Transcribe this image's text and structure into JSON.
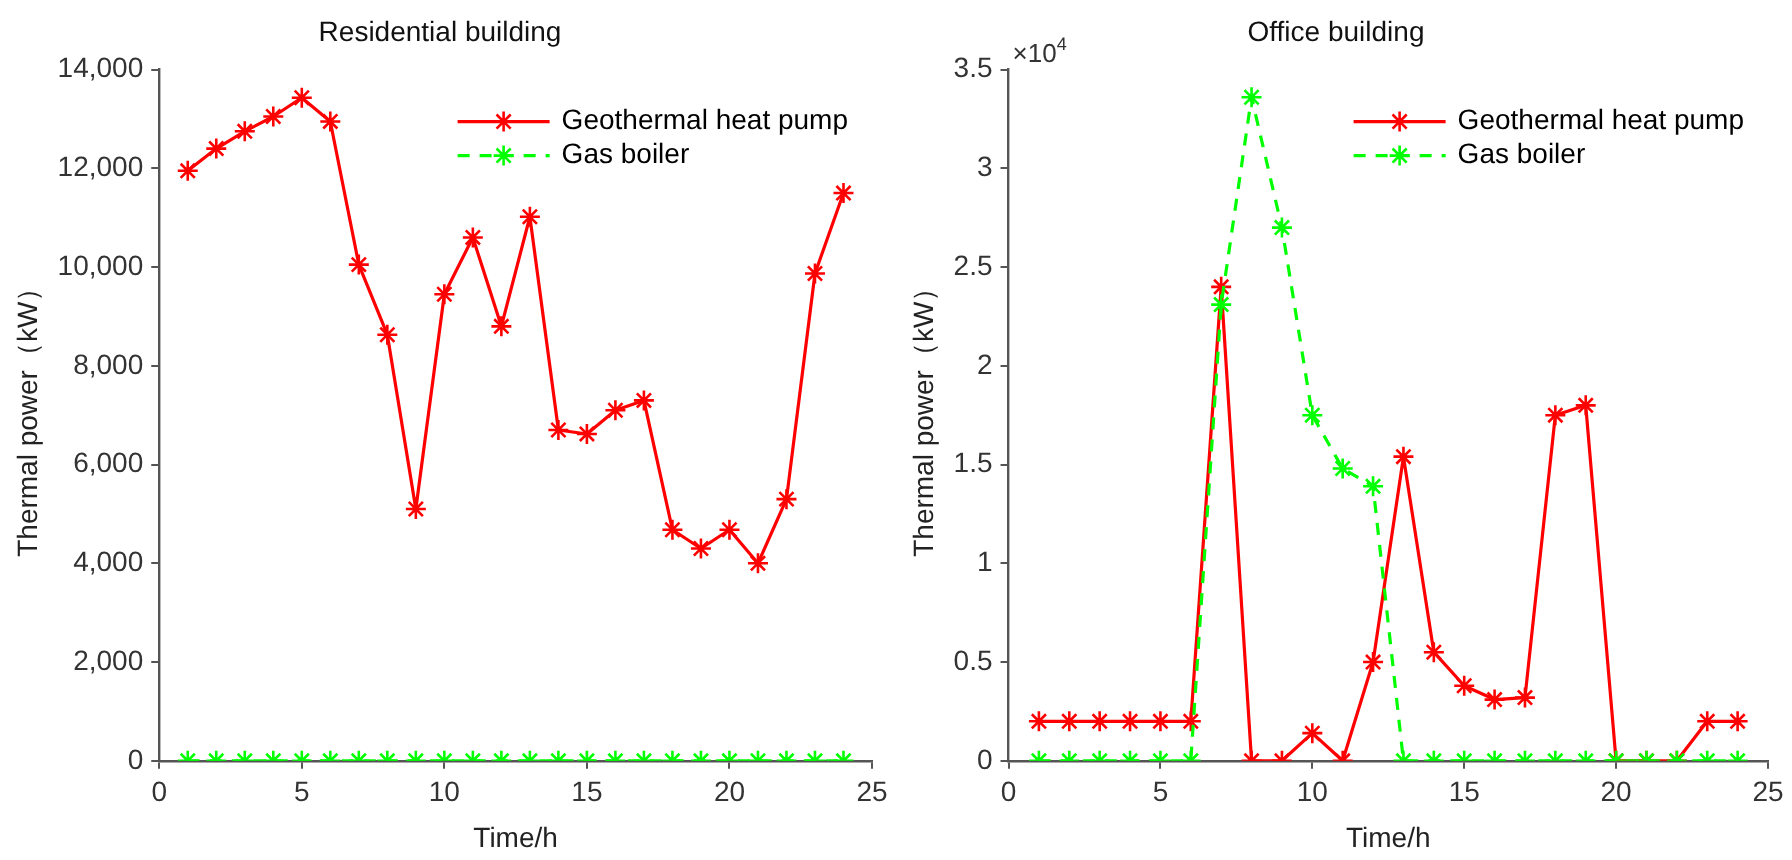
{
  "chart_data": [
    {
      "type": "line",
      "title": "Residential building",
      "xlabel": "Time/h",
      "ylabel": "Thermal power（kW）",
      "x": [
        1,
        2,
        3,
        4,
        5,
        6,
        7,
        8,
        9,
        10,
        11,
        12,
        13,
        14,
        15,
        16,
        17,
        18,
        19,
        20,
        21,
        22,
        23,
        24
      ],
      "series": [
        {
          "name": "Geothermal heat pump",
          "color": "#ff0000",
          "line_style": "solid",
          "values": [
            11950,
            12400,
            12750,
            13050,
            13430,
            12950,
            10050,
            8630,
            5100,
            9450,
            10600,
            8800,
            11020,
            6700,
            6620,
            7100,
            7300,
            4680,
            4300,
            4680,
            4000,
            5300,
            9870,
            11500
          ]
        },
        {
          "name": "Gas boiler",
          "color": "#00ff00",
          "line_style": "dashed",
          "values": [
            0,
            0,
            0,
            0,
            0,
            0,
            0,
            0,
            0,
            0,
            0,
            0,
            0,
            0,
            0,
            0,
            0,
            0,
            0,
            0,
            0,
            0,
            0,
            0
          ]
        }
      ],
      "xlim": [
        0,
        25
      ],
      "xticks": [
        0,
        5,
        10,
        15,
        20,
        25
      ],
      "ylim": [
        0,
        14000
      ],
      "yticks": [
        0,
        {
          "value": 2000,
          "label": "2,000"
        },
        {
          "value": 4000,
          "label": "4,000"
        },
        {
          "value": 6000,
          "label": "6,000"
        },
        {
          "value": 8000,
          "label": "8,000"
        },
        {
          "value": 10000,
          "label": "10,000"
        },
        {
          "value": 12000,
          "label": "12,000"
        },
        {
          "value": 14000,
          "label": "14,000"
        }
      ],
      "grid": false,
      "legend": "top right",
      "marker": "cross"
    },
    {
      "type": "line",
      "title": "Office building",
      "xlabel": "Time/h",
      "ylabel": "Thermal power（kW）",
      "annotations": [
        "×10$^{4}$"
      ],
      "x": [
        1,
        2,
        3,
        4,
        5,
        6,
        7,
        8,
        9,
        10,
        11,
        12,
        13,
        14,
        15,
        16,
        17,
        18,
        19,
        20,
        21,
        22,
        23,
        24
      ],
      "series": [
        {
          "name": "Geothermal heat pump",
          "color": "#ff0000",
          "line_style": "solid",
          "values": [
            0.2,
            0.2,
            0.2,
            0.2,
            0.2,
            0.2,
            2.4,
            0,
            0,
            0.14,
            0,
            0.5,
            1.54,
            0.55,
            0.38,
            0.31,
            0.32,
            1.75,
            1.8,
            0,
            0,
            0,
            0.2,
            0.2
          ]
        },
        {
          "name": "Gas boiler",
          "color": "#00ff00",
          "line_style": "dashed",
          "values": [
            0,
            0,
            0,
            0,
            0,
            0,
            2.31,
            3.36,
            2.7,
            1.75,
            1.48,
            1.39,
            0,
            0,
            0,
            0,
            0,
            0,
            0,
            0,
            0,
            0,
            0,
            0
          ]
        }
      ],
      "xlim": [
        0,
        25
      ],
      "xticks": [
        0,
        5,
        10,
        15,
        20,
        25
      ],
      "ylim": [
        0,
        3.5
      ],
      "yticks": [
        0,
        0.5,
        1,
        1.5,
        2,
        2.5,
        3,
        3.5
      ],
      "grid": false,
      "legend": "top right",
      "marker": "cross"
    }
  ]
}
